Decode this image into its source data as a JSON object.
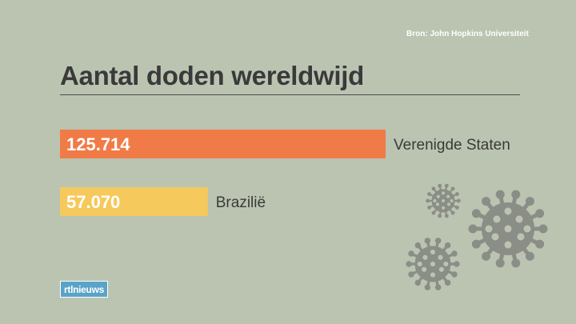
{
  "source": "Bron: John Hopkins Universiteit",
  "title": "Aantal doden wereldwijd",
  "logo": "rtlnieuws",
  "colors": {
    "background": "#bbc4b1",
    "bar_us": "#f07b47",
    "bar_brazil": "#f6c95c",
    "virus": "#8a8e87"
  },
  "icons": [
    "virus-icon",
    "virus-icon",
    "virus-icon"
  ],
  "chart_data": {
    "type": "bar",
    "orientation": "horizontal",
    "title": "Aantal doden wereldwijd",
    "categories": [
      "Verenigde Staten",
      "Brazilië"
    ],
    "values": [
      125714,
      57070
    ],
    "value_labels": [
      "125.714",
      "57.070"
    ],
    "bar_colors": [
      "#f07b47",
      "#f6c95c"
    ]
  }
}
